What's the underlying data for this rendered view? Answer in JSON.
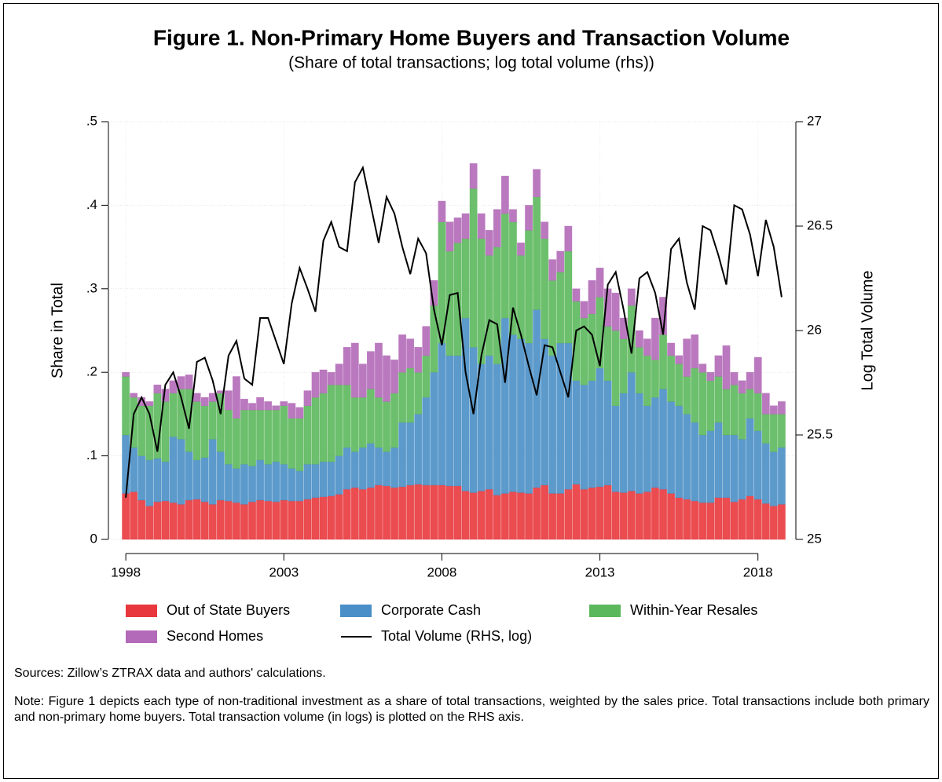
{
  "chart_data": {
    "type": "bar",
    "title": "Figure 1. Non-Primary Home Buyers and Transaction Volume",
    "subtitle": "(Share of total transactions; log total volume (rhs))",
    "ylabel": "Share in Total",
    "y2label": "Log Total Volume",
    "stacked": true,
    "grid": true,
    "x": [
      1998,
      1998.25,
      1998.5,
      1998.75,
      1999,
      1999.25,
      1999.5,
      1999.75,
      2000,
      2000.25,
      2000.5,
      2000.75,
      2001,
      2001.25,
      2001.5,
      2001.75,
      2002,
      2002.25,
      2002.5,
      2002.75,
      2003,
      2003.25,
      2003.5,
      2003.75,
      2004,
      2004.25,
      2004.5,
      2004.75,
      2005,
      2005.25,
      2005.5,
      2005.75,
      2006,
      2006.25,
      2006.5,
      2006.75,
      2007,
      2007.25,
      2007.5,
      2007.75,
      2008,
      2008.25,
      2008.5,
      2008.75,
      2009,
      2009.25,
      2009.5,
      2009.75,
      2010,
      2010.25,
      2010.5,
      2010.75,
      2011,
      2011.25,
      2011.5,
      2011.75,
      2012,
      2012.25,
      2012.5,
      2012.75,
      2013,
      2013.25,
      2013.5,
      2013.75,
      2014,
      2014.25,
      2014.5,
      2014.75,
      2015,
      2015.25,
      2015.5,
      2015.75,
      2016,
      2016.25,
      2016.5,
      2016.75,
      2017,
      2017.25,
      2017.5,
      2017.75,
      2018,
      2018.25,
      2018.5,
      2018.75
    ],
    "xlim": [
      1997.45,
      2019.2
    ],
    "xticks": [
      1998,
      2003,
      2008,
      2013,
      2018
    ],
    "ylim": [
      0,
      0.5
    ],
    "yticks": [
      0,
      {
        "value": 0.1,
        "label": ".1"
      },
      {
        "value": 0.2,
        "label": ".2"
      },
      {
        "value": 0.3,
        "label": ".3"
      },
      {
        "value": 0.4,
        "label": ".4"
      },
      {
        "value": 0.5,
        "label": ".5"
      }
    ],
    "y2lim": [
      25,
      27
    ],
    "y2ticks": [
      25,
      25.5,
      26,
      26.5,
      27
    ],
    "series": [
      {
        "name": "Out of State Buyers",
        "color": "#e8383d",
        "values": [
          0.055,
          0.057,
          0.047,
          0.04,
          0.045,
          0.046,
          0.044,
          0.042,
          0.047,
          0.048,
          0.045,
          0.042,
          0.047,
          0.046,
          0.044,
          0.042,
          0.045,
          0.047,
          0.046,
          0.045,
          0.047,
          0.046,
          0.046,
          0.048,
          0.05,
          0.051,
          0.052,
          0.054,
          0.06,
          0.062,
          0.06,
          0.062,
          0.065,
          0.064,
          0.062,
          0.063,
          0.065,
          0.066,
          0.065,
          0.065,
          0.065,
          0.064,
          0.064,
          0.058,
          0.056,
          0.058,
          0.06,
          0.053,
          0.055,
          0.057,
          0.056,
          0.055,
          0.062,
          0.065,
          0.055,
          0.055,
          0.06,
          0.066,
          0.06,
          0.062,
          0.063,
          0.065,
          0.057,
          0.056,
          0.058,
          0.055,
          0.057,
          0.062,
          0.06,
          0.055,
          0.05,
          0.048,
          0.046,
          0.044,
          0.044,
          0.05,
          0.05,
          0.045,
          0.048,
          0.052,
          0.048,
          0.043,
          0.04,
          0.042
        ]
      },
      {
        "name": "Corporate Cash",
        "color": "#4a8fc7",
        "values": [
          0.07,
          0.053,
          0.053,
          0.055,
          0.052,
          0.047,
          0.079,
          0.078,
          0.058,
          0.047,
          0.053,
          0.078,
          0.058,
          0.044,
          0.041,
          0.048,
          0.043,
          0.048,
          0.044,
          0.048,
          0.043,
          0.039,
          0.036,
          0.042,
          0.04,
          0.042,
          0.041,
          0.046,
          0.05,
          0.043,
          0.05,
          0.053,
          0.045,
          0.041,
          0.048,
          0.077,
          0.075,
          0.084,
          0.105,
          0.135,
          0.17,
          0.156,
          0.156,
          0.207,
          0.174,
          0.152,
          0.16,
          0.157,
          0.21,
          0.188,
          0.184,
          0.18,
          0.213,
          0.175,
          0.165,
          0.18,
          0.175,
          0.124,
          0.125,
          0.128,
          0.142,
          0.125,
          0.103,
          0.119,
          0.142,
          0.12,
          0.103,
          0.108,
          0.12,
          0.11,
          0.11,
          0.102,
          0.094,
          0.081,
          0.086,
          0.09,
          0.075,
          0.08,
          0.072,
          0.093,
          0.082,
          0.072,
          0.065,
          0.068
        ]
      },
      {
        "name": "Within-Year Resales",
        "color": "#5cb85c",
        "values": [
          0.07,
          0.06,
          0.06,
          0.065,
          0.078,
          0.072,
          0.052,
          0.06,
          0.075,
          0.07,
          0.062,
          0.045,
          0.07,
          0.065,
          0.06,
          0.065,
          0.067,
          0.06,
          0.065,
          0.062,
          0.07,
          0.06,
          0.063,
          0.07,
          0.08,
          0.082,
          0.092,
          0.085,
          0.075,
          0.065,
          0.06,
          0.065,
          0.06,
          0.06,
          0.065,
          0.06,
          0.065,
          0.05,
          0.05,
          0.08,
          0.145,
          0.125,
          0.135,
          0.095,
          0.19,
          0.15,
          0.12,
          0.14,
          0.125,
          0.135,
          0.1,
          0.135,
          0.135,
          0.12,
          0.09,
          0.085,
          0.11,
          0.095,
          0.08,
          0.08,
          0.085,
          0.065,
          0.09,
          0.065,
          0.08,
          0.055,
          0.06,
          0.045,
          0.065,
          0.055,
          0.05,
          0.045,
          0.065,
          0.075,
          0.06,
          0.055,
          0.055,
          0.06,
          0.055,
          0.035,
          0.045,
          0.035,
          0.045,
          0.04
        ]
      },
      {
        "name": "Second Homes",
        "color": "#b36ab8",
        "values": [
          0.005,
          0.005,
          0.01,
          0.005,
          0.01,
          0.015,
          0.015,
          0.015,
          0.017,
          0.01,
          0.01,
          0.01,
          0.003,
          0.023,
          0.05,
          0.013,
          0.008,
          0.015,
          0.01,
          0.005,
          0.005,
          0.018,
          0.013,
          0.018,
          0.03,
          0.028,
          0.015,
          0.025,
          0.045,
          0.065,
          0.04,
          0.045,
          0.065,
          0.055,
          0.04,
          0.045,
          0.035,
          0.03,
          0.035,
          0.03,
          0.025,
          0.035,
          0.03,
          0.03,
          0.03,
          0.03,
          0.03,
          0.045,
          0.045,
          0.015,
          0.015,
          0.03,
          0.033,
          0.02,
          0.025,
          0.025,
          0.03,
          0.015,
          0.02,
          0.04,
          0.035,
          0.045,
          0.045,
          0.025,
          0.02,
          0.02,
          0.02,
          0.05,
          0.045,
          0.015,
          0.01,
          0.045,
          0.04,
          0.01,
          0.01,
          0.025,
          0.052,
          0.015,
          0.015,
          0.02,
          0.043,
          0.025,
          0.01,
          0.015
        ]
      },
      {
        "name": "Total Volume (RHS, log)",
        "color": "#000000",
        "axis": "y2",
        "values": [
          25.2,
          25.6,
          25.68,
          25.6,
          25.42,
          25.74,
          25.8,
          25.68,
          25.53,
          25.85,
          25.87,
          25.76,
          25.6,
          25.88,
          25.95,
          25.77,
          25.74,
          26.06,
          26.06,
          25.95,
          25.84,
          26.13,
          26.3,
          26.2,
          26.09,
          26.43,
          26.52,
          26.4,
          26.38,
          26.71,
          26.78,
          26.6,
          26.42,
          26.64,
          26.56,
          26.4,
          26.27,
          26.44,
          26.37,
          26.1,
          25.93,
          26.17,
          26.18,
          25.8,
          25.6,
          25.88,
          26.05,
          26.03,
          25.75,
          26.11,
          25.98,
          25.83,
          25.69,
          25.93,
          25.92,
          25.8,
          25.68,
          26.0,
          26.02,
          25.98,
          25.83,
          26.22,
          26.28,
          26.1,
          25.89,
          26.25,
          26.28,
          26.18,
          25.98,
          26.39,
          26.44,
          26.23,
          26.1,
          26.5,
          26.48,
          26.36,
          26.22,
          26.6,
          26.58,
          26.46,
          26.26,
          26.53,
          26.4,
          26.16
        ]
      }
    ],
    "sources": "Sources: Zillow’s ZTRAX data and authors' calculations.",
    "note": "Note: Figure 1 depicts each type of non-traditional investment as a share of total transactions, weighted by the sales price. Total transactions include both primary and non-primary home buyers. Total transaction volume (in logs) is plotted on the RHS axis."
  }
}
